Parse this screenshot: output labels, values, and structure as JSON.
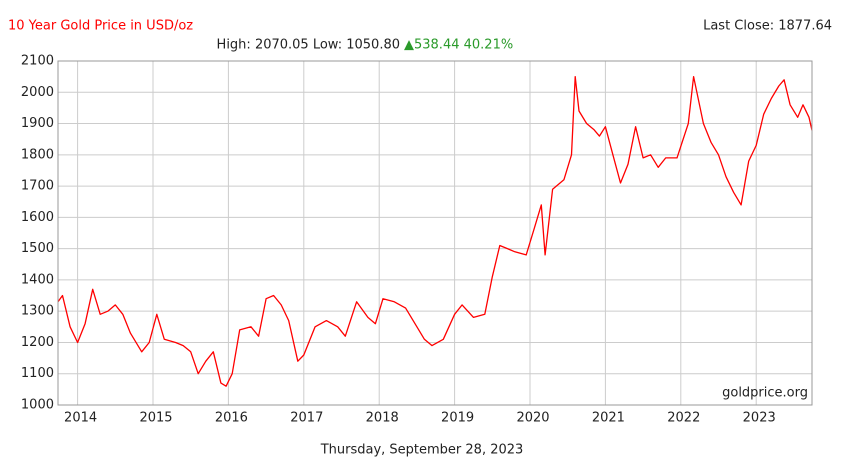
{
  "chart_data": {
    "type": "line",
    "title": "10 Year Gold Price in USD/oz",
    "last_close": "Last Close: 1877.64",
    "stats": "High: 2070.05 Low: 1050.80",
    "change": "▲538.44 40.21%",
    "source": "goldprice.org",
    "date": "Thursday, September 28, 2023",
    "color": "#ff0000",
    "grid": true,
    "xlim": [
      2013.74,
      2023.74
    ],
    "xticks": [
      2014,
      2015,
      2016,
      2017,
      2018,
      2019,
      2020,
      2021,
      2022,
      2023
    ],
    "ylim": [
      1000,
      2100
    ],
    "yticks": [
      1000,
      1100,
      1200,
      1300,
      1400,
      1500,
      1600,
      1700,
      1800,
      1900,
      2000,
      2100
    ],
    "x": [
      2013.74,
      2013.8,
      2013.9,
      2014.0,
      2014.1,
      2014.2,
      2014.3,
      2014.4,
      2014.5,
      2014.6,
      2014.7,
      2014.85,
      2014.95,
      2015.05,
      2015.15,
      2015.3,
      2015.4,
      2015.5,
      2015.6,
      2015.7,
      2015.8,
      2015.9,
      2015.97,
      2016.05,
      2016.15,
      2016.3,
      2016.4,
      2016.5,
      2016.6,
      2016.7,
      2016.8,
      2016.92,
      2017.0,
      2017.15,
      2017.3,
      2017.45,
      2017.55,
      2017.7,
      2017.85,
      2017.95,
      2018.05,
      2018.2,
      2018.35,
      2018.5,
      2018.6,
      2018.7,
      2018.85,
      2019.0,
      2019.1,
      2019.25,
      2019.4,
      2019.5,
      2019.6,
      2019.7,
      2019.8,
      2019.95,
      2020.05,
      2020.15,
      2020.2,
      2020.3,
      2020.45,
      2020.55,
      2020.6,
      2020.65,
      2020.75,
      2020.85,
      2020.92,
      2021.0,
      2021.1,
      2021.2,
      2021.3,
      2021.4,
      2021.5,
      2021.6,
      2021.7,
      2021.8,
      2021.95,
      2022.1,
      2022.17,
      2022.3,
      2022.4,
      2022.5,
      2022.6,
      2022.7,
      2022.8,
      2022.9,
      2023.0,
      2023.1,
      2023.2,
      2023.3,
      2023.37,
      2023.45,
      2023.55,
      2023.62,
      2023.7,
      2023.74
    ],
    "values": [
      1330,
      1350,
      1250,
      1200,
      1260,
      1370,
      1290,
      1300,
      1320,
      1290,
      1230,
      1170,
      1200,
      1290,
      1210,
      1200,
      1190,
      1170,
      1100,
      1140,
      1170,
      1070,
      1060,
      1100,
      1240,
      1250,
      1220,
      1340,
      1350,
      1320,
      1270,
      1140,
      1160,
      1250,
      1270,
      1250,
      1220,
      1330,
      1280,
      1260,
      1340,
      1330,
      1310,
      1250,
      1210,
      1190,
      1210,
      1290,
      1320,
      1280,
      1290,
      1410,
      1510,
      1500,
      1490,
      1480,
      1560,
      1640,
      1480,
      1690,
      1720,
      1800,
      2050,
      1940,
      1900,
      1880,
      1860,
      1890,
      1800,
      1710,
      1770,
      1890,
      1790,
      1800,
      1760,
      1790,
      1790,
      1900,
      2050,
      1900,
      1840,
      1800,
      1730,
      1680,
      1640,
      1780,
      1830,
      1930,
      1980,
      2020,
      2040,
      1960,
      1920,
      1960,
      1920,
      1878
    ]
  }
}
